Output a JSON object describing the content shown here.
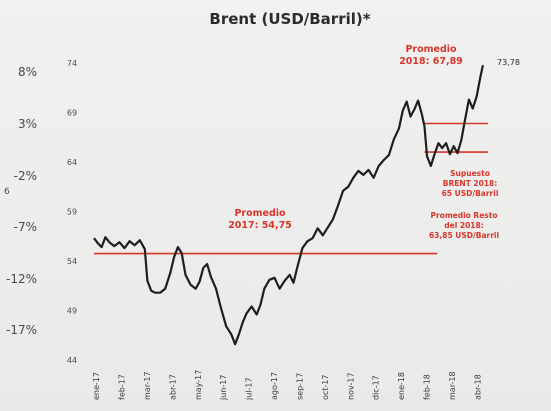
{
  "chart_data": {
    "type": "line",
    "title": "Brent (USD/Barril)*",
    "xlabel": "",
    "ylabel": "",
    "ylim": [
      44,
      74
    ],
    "y_ticks": [
      44,
      49,
      54,
      59,
      64,
      69,
      74
    ],
    "secondary_y_ticks": [
      "8%",
      "3%",
      "-2%",
      "-7%",
      "-12%",
      "-17%"
    ],
    "x_ticks": [
      "ene-17",
      "feb-17",
      "mar-17",
      "abr-17",
      "may-17",
      "jun-17",
      "jul-17",
      "ago-17",
      "sep-17",
      "oct-17",
      "nov-17",
      "dic-17",
      "ene-18",
      "feb-18",
      "mar-18",
      "abr-18"
    ],
    "grid": false,
    "series": [
      {
        "values": [
          {
            "x": 0.0,
            "y": 56.3
          },
          {
            "x": 0.15,
            "y": 55.8
          },
          {
            "x": 0.3,
            "y": 55.4
          },
          {
            "x": 0.45,
            "y": 56.4
          },
          {
            "x": 0.6,
            "y": 55.9
          },
          {
            "x": 0.8,
            "y": 55.5
          },
          {
            "x": 1.0,
            "y": 55.9
          },
          {
            "x": 1.2,
            "y": 55.3
          },
          {
            "x": 1.4,
            "y": 56.0
          },
          {
            "x": 1.6,
            "y": 55.6
          },
          {
            "x": 1.8,
            "y": 56.1
          },
          {
            "x": 2.0,
            "y": 55.2
          },
          {
            "x": 2.1,
            "y": 52.0
          },
          {
            "x": 2.25,
            "y": 51.0
          },
          {
            "x": 2.4,
            "y": 50.8
          },
          {
            "x": 2.6,
            "y": 50.8
          },
          {
            "x": 2.8,
            "y": 51.2
          },
          {
            "x": 3.0,
            "y": 52.8
          },
          {
            "x": 3.15,
            "y": 54.4
          },
          {
            "x": 3.3,
            "y": 55.4
          },
          {
            "x": 3.45,
            "y": 54.8
          },
          {
            "x": 3.6,
            "y": 52.6
          },
          {
            "x": 3.8,
            "y": 51.6
          },
          {
            "x": 4.0,
            "y": 51.2
          },
          {
            "x": 4.15,
            "y": 51.9
          },
          {
            "x": 4.3,
            "y": 53.3
          },
          {
            "x": 4.45,
            "y": 53.7
          },
          {
            "x": 4.6,
            "y": 52.4
          },
          {
            "x": 4.8,
            "y": 51.2
          },
          {
            "x": 5.0,
            "y": 49.2
          },
          {
            "x": 5.2,
            "y": 47.4
          },
          {
            "x": 5.4,
            "y": 46.6
          },
          {
            "x": 5.55,
            "y": 45.6
          },
          {
            "x": 5.7,
            "y": 46.6
          },
          {
            "x": 5.85,
            "y": 47.8
          },
          {
            "x": 6.0,
            "y": 48.7
          },
          {
            "x": 6.2,
            "y": 49.4
          },
          {
            "x": 6.4,
            "y": 48.6
          },
          {
            "x": 6.55,
            "y": 49.6
          },
          {
            "x": 6.7,
            "y": 51.2
          },
          {
            "x": 6.9,
            "y": 52.1
          },
          {
            "x": 7.1,
            "y": 52.3
          },
          {
            "x": 7.3,
            "y": 51.2
          },
          {
            "x": 7.5,
            "y": 52.0
          },
          {
            "x": 7.7,
            "y": 52.6
          },
          {
            "x": 7.85,
            "y": 51.8
          },
          {
            "x": 8.0,
            "y": 53.4
          },
          {
            "x": 8.2,
            "y": 55.3
          },
          {
            "x": 8.4,
            "y": 56.0
          },
          {
            "x": 8.6,
            "y": 56.3
          },
          {
            "x": 8.8,
            "y": 57.3
          },
          {
            "x": 9.0,
            "y": 56.6
          },
          {
            "x": 9.2,
            "y": 57.4
          },
          {
            "x": 9.4,
            "y": 58.2
          },
          {
            "x": 9.6,
            "y": 59.6
          },
          {
            "x": 9.8,
            "y": 61.1
          },
          {
            "x": 10.0,
            "y": 61.5
          },
          {
            "x": 10.2,
            "y": 62.4
          },
          {
            "x": 10.4,
            "y": 63.1
          },
          {
            "x": 10.6,
            "y": 62.7
          },
          {
            "x": 10.8,
            "y": 63.2
          },
          {
            "x": 11.0,
            "y": 62.4
          },
          {
            "x": 11.2,
            "y": 63.6
          },
          {
            "x": 11.4,
            "y": 64.2
          },
          {
            "x": 11.6,
            "y": 64.7
          },
          {
            "x": 11.8,
            "y": 66.3
          },
          {
            "x": 12.0,
            "y": 67.4
          },
          {
            "x": 12.15,
            "y": 69.2
          },
          {
            "x": 12.3,
            "y": 70.1
          },
          {
            "x": 12.45,
            "y": 68.6
          },
          {
            "x": 12.6,
            "y": 69.3
          },
          {
            "x": 12.75,
            "y": 70.2
          },
          {
            "x": 12.9,
            "y": 68.8
          },
          {
            "x": 13.0,
            "y": 67.6
          },
          {
            "x": 13.1,
            "y": 64.6
          },
          {
            "x": 13.25,
            "y": 63.6
          },
          {
            "x": 13.4,
            "y": 64.8
          },
          {
            "x": 13.55,
            "y": 65.9
          },
          {
            "x": 13.7,
            "y": 65.4
          },
          {
            "x": 13.85,
            "y": 65.9
          },
          {
            "x": 14.0,
            "y": 64.8
          },
          {
            "x": 14.15,
            "y": 65.6
          },
          {
            "x": 14.3,
            "y": 64.9
          },
          {
            "x": 14.45,
            "y": 66.2
          },
          {
            "x": 14.6,
            "y": 68.3
          },
          {
            "x": 14.75,
            "y": 70.3
          },
          {
            "x": 14.9,
            "y": 69.4
          },
          {
            "x": 15.05,
            "y": 70.6
          },
          {
            "x": 15.2,
            "y": 72.6
          },
          {
            "x": 15.3,
            "y": 73.78
          }
        ]
      }
    ],
    "annotations": {
      "avg_2017_label": "Promedio\n2017: 54,75",
      "avg_2017_value": 54.75,
      "avg_2017_x_range": [
        0,
        13.5
      ],
      "avg_2018_label": "Promedio\n2018: 67,89",
      "avg_2018_value": 67.89,
      "avg_2018_x_range": [
        13.0,
        15.5
      ],
      "supuesto_label": "Supuesto\nBRENT 2018:\n65 USD/Barril",
      "supuesto_value": 65.0,
      "supuesto_x_range": [
        13.0,
        15.5
      ],
      "resto_label": "Promedio Resto\ndel 2018:\n63,85 USD/Barril",
      "last_value_label": "73,78",
      "stray_label": "6"
    },
    "colors": {
      "line": "#1e1e1e",
      "accent": "#d6362c"
    }
  }
}
